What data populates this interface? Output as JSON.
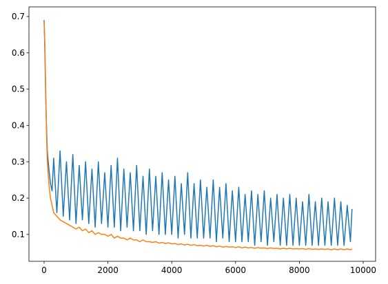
{
  "chart_data": {
    "type": "line",
    "x": [
      0,
      25,
      50,
      75,
      100,
      150,
      200,
      250,
      300,
      400,
      500,
      600,
      700,
      800,
      900,
      1000,
      1100,
      1200,
      1300,
      1400,
      1500,
      1600,
      1700,
      1800,
      1900,
      2000,
      2100,
      2200,
      2300,
      2400,
      2500,
      2600,
      2700,
      2800,
      2900,
      3000,
      3100,
      3200,
      3300,
      3400,
      3500,
      3600,
      3700,
      3800,
      3900,
      4000,
      4100,
      4200,
      4300,
      4400,
      4500,
      4600,
      4700,
      4800,
      4900,
      5000,
      5100,
      5200,
      5300,
      5400,
      5500,
      5600,
      5700,
      5800,
      5900,
      6000,
      6100,
      6200,
      6300,
      6400,
      6500,
      6600,
      6700,
      6800,
      6900,
      7000,
      7100,
      7200,
      7300,
      7400,
      7500,
      7600,
      7700,
      7800,
      7900,
      8000,
      8100,
      8200,
      8300,
      8400,
      8500,
      8600,
      8700,
      8800,
      8900,
      9000,
      9100,
      9200,
      9300,
      9400,
      9500,
      9600,
      9650
    ],
    "series": [
      {
        "color": "#1f77b4",
        "values": [
          0.69,
          0.6,
          0.48,
          0.4,
          0.33,
          0.28,
          0.24,
          0.22,
          0.31,
          0.16,
          0.33,
          0.15,
          0.3,
          0.14,
          0.32,
          0.13,
          0.29,
          0.14,
          0.3,
          0.13,
          0.28,
          0.12,
          0.3,
          0.13,
          0.27,
          0.12,
          0.29,
          0.12,
          0.31,
          0.11,
          0.28,
          0.12,
          0.27,
          0.11,
          0.29,
          0.11,
          0.26,
          0.1,
          0.28,
          0.11,
          0.26,
          0.1,
          0.27,
          0.1,
          0.25,
          0.1,
          0.26,
          0.09,
          0.24,
          0.1,
          0.27,
          0.09,
          0.24,
          0.09,
          0.25,
          0.09,
          0.23,
          0.09,
          0.25,
          0.08,
          0.23,
          0.09,
          0.24,
          0.08,
          0.22,
          0.08,
          0.23,
          0.08,
          0.21,
          0.08,
          0.22,
          0.07,
          0.21,
          0.08,
          0.22,
          0.07,
          0.2,
          0.08,
          0.21,
          0.07,
          0.2,
          0.07,
          0.21,
          0.07,
          0.2,
          0.07,
          0.19,
          0.07,
          0.21,
          0.07,
          0.19,
          0.07,
          0.2,
          0.07,
          0.19,
          0.07,
          0.2,
          0.07,
          0.19,
          0.07,
          0.18,
          0.08,
          0.17
        ]
      },
      {
        "color": "#ff7f0e",
        "values": [
          0.69,
          0.62,
          0.5,
          0.38,
          0.3,
          0.24,
          0.2,
          0.18,
          0.16,
          0.15,
          0.14,
          0.135,
          0.13,
          0.125,
          0.12,
          0.115,
          0.12,
          0.11,
          0.115,
          0.105,
          0.11,
          0.1,
          0.105,
          0.1,
          0.1,
          0.095,
          0.1,
          0.09,
          0.095,
          0.09,
          0.09,
          0.085,
          0.09,
          0.085,
          0.085,
          0.08,
          0.085,
          0.08,
          0.08,
          0.078,
          0.08,
          0.076,
          0.078,
          0.075,
          0.077,
          0.074,
          0.075,
          0.072,
          0.074,
          0.071,
          0.073,
          0.07,
          0.072,
          0.069,
          0.07,
          0.068,
          0.07,
          0.067,
          0.069,
          0.066,
          0.068,
          0.065,
          0.067,
          0.065,
          0.066,
          0.064,
          0.066,
          0.063,
          0.065,
          0.063,
          0.064,
          0.062,
          0.064,
          0.062,
          0.063,
          0.061,
          0.063,
          0.061,
          0.062,
          0.06,
          0.062,
          0.06,
          0.062,
          0.06,
          0.061,
          0.06,
          0.061,
          0.059,
          0.061,
          0.059,
          0.06,
          0.059,
          0.06,
          0.059,
          0.06,
          0.058,
          0.06,
          0.058,
          0.06,
          0.058,
          0.06,
          0.058,
          0.06
        ]
      }
    ],
    "xlim": [
      -475,
      10389
    ],
    "ylim": [
      0.026,
      0.7265
    ],
    "xticks": [
      0,
      2000,
      4000,
      6000,
      8000,
      10000
    ],
    "yticks": [
      0.1,
      0.2,
      0.3,
      0.4,
      0.5,
      0.6,
      0.7
    ],
    "grid": false
  }
}
